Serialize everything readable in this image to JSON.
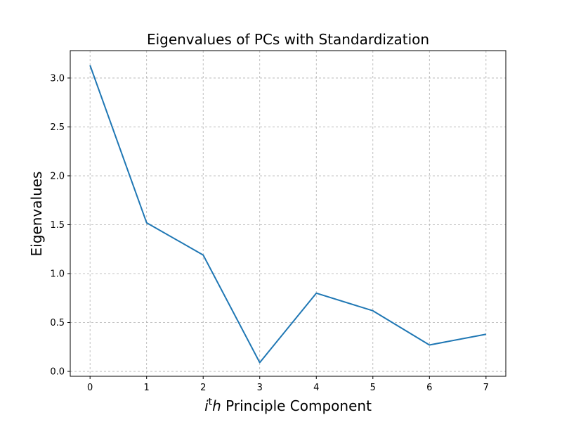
{
  "chart_data": {
    "type": "line",
    "title": "Eigenvalues of PCs with Standardization",
    "xlabel": {
      "italic_base": "i",
      "superscript": "t",
      "italic_h": "h",
      "rest": " Principle Component"
    },
    "ylabel": "Eigenvalues",
    "x": [
      0,
      1,
      2,
      3,
      4,
      5,
      6,
      7
    ],
    "series": [
      {
        "values": [
          3.13,
          1.52,
          1.19,
          0.09,
          0.8,
          0.62,
          0.27,
          0.38
        ],
        "color": "#1f77b4"
      }
    ],
    "x_ticks": [
      "0",
      "1",
      "2",
      "3",
      "4",
      "5",
      "6",
      "7"
    ],
    "y_ticks": [
      "0.0",
      "0.5",
      "1.0",
      "1.5",
      "2.0",
      "2.5",
      "3.0"
    ],
    "xlim": [
      -0.35,
      7.35
    ],
    "ylim": [
      -0.05,
      3.28
    ],
    "grid": true,
    "legend": false
  }
}
